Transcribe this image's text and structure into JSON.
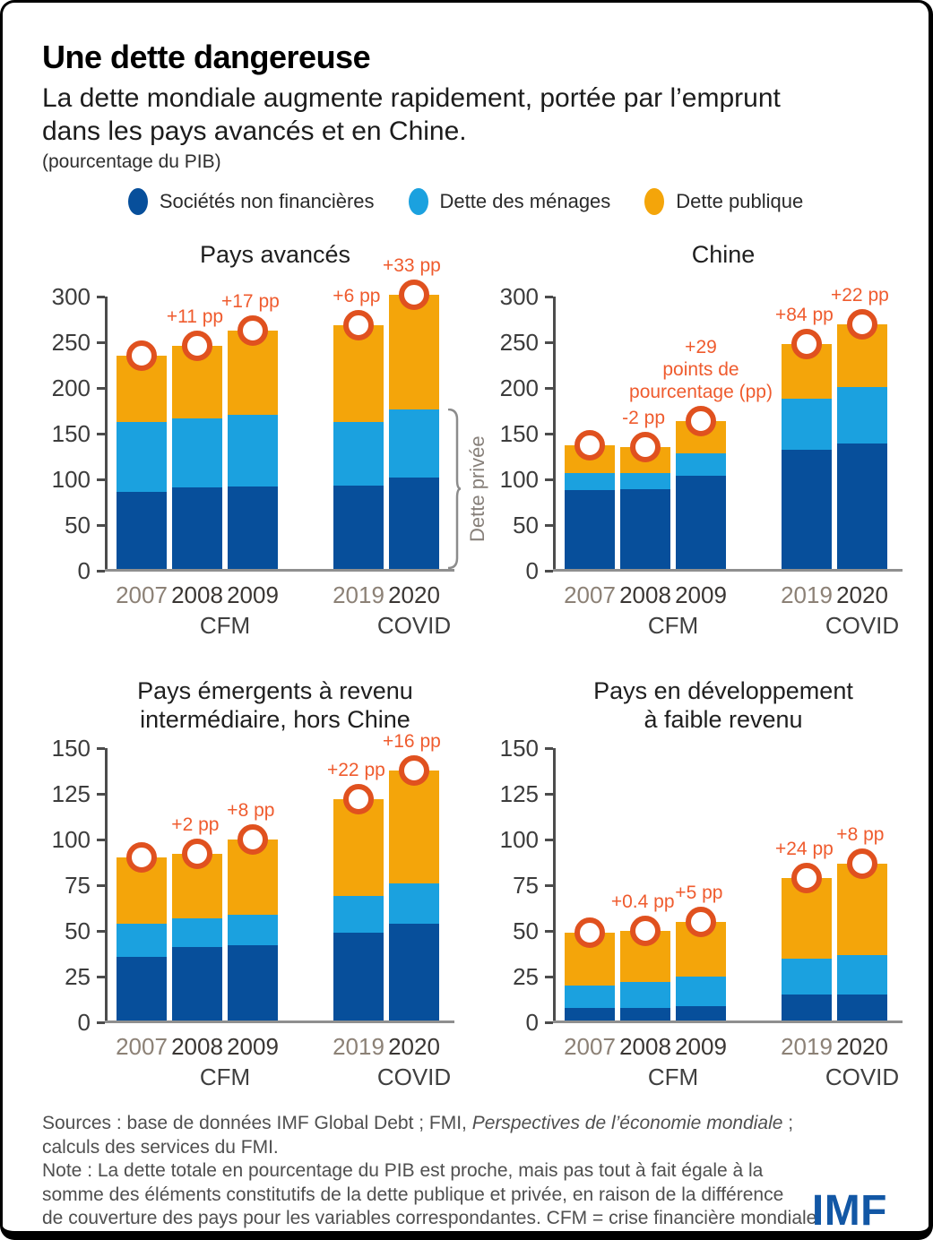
{
  "header": {
    "title": "Une dette dangereuse",
    "subtitle_lines": "La dette mondiale augmente rapidement, portée par l’emprunt\ndans les pays avancés et en Chine.",
    "unit": "(pourcentage du PIB)"
  },
  "colors": {
    "snf": "#074F9B",
    "menages": "#1BA1DF",
    "publique": "#F4A50A",
    "marker_ring": "#E0511F",
    "annotation": "#EF5B2E",
    "year_muted": "#8C8176",
    "year_dark": "#3A3633",
    "axis": "#4C4C4C",
    "baseline": "#8F8F8F",
    "bracket": "#8C8C8C",
    "bracket_text": "#87807A",
    "imf_blue": "#1257A5"
  },
  "series": [
    {
      "key": "snf",
      "label": "Sociétés non financières",
      "color": "#074F9B"
    },
    {
      "key": "menages",
      "label": "Dette des ménages",
      "color": "#1BA1DF"
    },
    {
      "key": "publique",
      "label": "Dette publique",
      "color": "#F4A50A"
    }
  ],
  "chart_data": [
    {
      "type": "bar",
      "stacked": true,
      "title_lines": "Pays avancés",
      "ymax": 300,
      "yticks": [
        0,
        50,
        100,
        150,
        200,
        250,
        300
      ],
      "series_order": [
        "snf",
        "menages",
        "publique"
      ],
      "bars": [
        {
          "year": "2007",
          "muted": true,
          "values": [
            84,
            77,
            72
          ],
          "total": 233,
          "annotation": null
        },
        {
          "year": "2008",
          "muted": false,
          "values": [
            89,
            76,
            79
          ],
          "total": 244,
          "annotation": "+11 pp"
        },
        {
          "year": "2009",
          "muted": false,
          "values": [
            90,
            79,
            92
          ],
          "total": 261,
          "annotation": "+17 pp"
        },
        {
          "year": "2019",
          "muted": true,
          "values": [
            91,
            70,
            106
          ],
          "total": 267,
          "annotation": "+6 pp"
        },
        {
          "year": "2020",
          "muted": false,
          "values": [
            100,
            75,
            125
          ],
          "total": 300,
          "annotation": "+33 pp"
        }
      ],
      "group_labels": [
        {
          "text": "CFM",
          "anchor": "cfm"
        },
        {
          "text": "COVID",
          "anchor": "covid"
        }
      ],
      "bracket": {
        "label": "Dette privée",
        "to_value": 175
      }
    },
    {
      "type": "bar",
      "stacked": true,
      "title_lines": "Chine",
      "ymax": 300,
      "yticks": [
        0,
        50,
        100,
        150,
        200,
        250,
        300
      ],
      "series_order": [
        "snf",
        "menages",
        "publique"
      ],
      "bars": [
        {
          "year": "2007",
          "muted": true,
          "values": [
            86,
            19,
            30
          ],
          "total": 135,
          "annotation": null
        },
        {
          "year": "2008",
          "muted": false,
          "values": [
            87,
            18,
            28
          ],
          "total": 133,
          "annotation": "-2 pp"
        },
        {
          "year": "2009",
          "muted": false,
          "values": [
            102,
            24,
            36
          ],
          "total": 162,
          "annotation": "+29\npoints de\npourcentage (pp)"
        },
        {
          "year": "2019",
          "muted": true,
          "values": [
            130,
            56,
            60
          ],
          "total": 246,
          "annotation": "+84 pp"
        },
        {
          "year": "2020",
          "muted": false,
          "values": [
            137,
            62,
            69
          ],
          "total": 268,
          "annotation": "+22 pp"
        }
      ],
      "group_labels": [
        {
          "text": "CFM",
          "anchor": "cfm"
        },
        {
          "text": "COVID",
          "anchor": "covid"
        }
      ],
      "bracket": null
    },
    {
      "type": "bar",
      "stacked": true,
      "title_lines": "Pays émergents à revenu\nintermédiaire, hors Chine",
      "ymax": 150,
      "yticks": [
        0,
        25,
        50,
        75,
        100,
        125,
        150
      ],
      "series_order": [
        "snf",
        "menages",
        "publique"
      ],
      "bars": [
        {
          "year": "2007",
          "muted": true,
          "values": [
            35,
            18,
            36
          ],
          "total": 89,
          "annotation": null
        },
        {
          "year": "2008",
          "muted": false,
          "values": [
            40,
            16,
            35
          ],
          "total": 91,
          "annotation": "+2 pp"
        },
        {
          "year": "2009",
          "muted": false,
          "values": [
            41,
            17,
            41
          ],
          "total": 99,
          "annotation": "+8 pp"
        },
        {
          "year": "2019",
          "muted": true,
          "values": [
            48,
            20,
            53
          ],
          "total": 121,
          "annotation": "+22 pp"
        },
        {
          "year": "2020",
          "muted": false,
          "values": [
            53,
            22,
            62
          ],
          "total": 137,
          "annotation": "+16 pp"
        }
      ],
      "group_labels": [
        {
          "text": "CFM",
          "anchor": "cfm"
        },
        {
          "text": "COVID",
          "anchor": "covid"
        }
      ],
      "bracket": null
    },
    {
      "type": "bar",
      "stacked": true,
      "title_lines": "Pays en développement\nà faible revenu",
      "ymax": 150,
      "yticks": [
        0,
        25,
        50,
        75,
        100,
        125,
        150
      ],
      "series_order": [
        "snf",
        "menages",
        "publique"
      ],
      "bars": [
        {
          "year": "2007",
          "muted": true,
          "values": [
            7,
            12,
            29
          ],
          "total": 48,
          "annotation": null
        },
        {
          "year": "2008",
          "muted": false,
          "values": [
            7,
            14,
            28
          ],
          "total": 49,
          "annotation": "+0.4 pp"
        },
        {
          "year": "2009",
          "muted": false,
          "values": [
            8,
            16,
            30
          ],
          "total": 54,
          "annotation": "+5 pp"
        },
        {
          "year": "2019",
          "muted": true,
          "values": [
            14,
            20,
            44
          ],
          "total": 78,
          "annotation": "+24 pp"
        },
        {
          "year": "2020",
          "muted": false,
          "values": [
            14,
            22,
            50
          ],
          "total": 86,
          "annotation": "+8 pp"
        }
      ],
      "group_labels": [
        {
          "text": "CFM",
          "anchor": "cfm"
        },
        {
          "text": "COVID",
          "anchor": "covid"
        }
      ],
      "bracket": null
    }
  ],
  "footer": {
    "sources_prefix": "Sources : base de données IMF Global Debt ; FMI, ",
    "sources_italic": "Perspectives de l’économie mondiale",
    "sources_suffix": " ;",
    "sources_line2": "calculs des services du FMI.",
    "note_lines": [
      "Note : La dette totale en pourcentage du PIB est proche, mais pas tout à fait égale à la",
      "somme des éléments constitutifs de la dette publique et privée, en raison de la différence",
      "de couverture des pays pour les variables correspondantes. CFM = crise financière mondiale."
    ],
    "logo": "IMF"
  }
}
